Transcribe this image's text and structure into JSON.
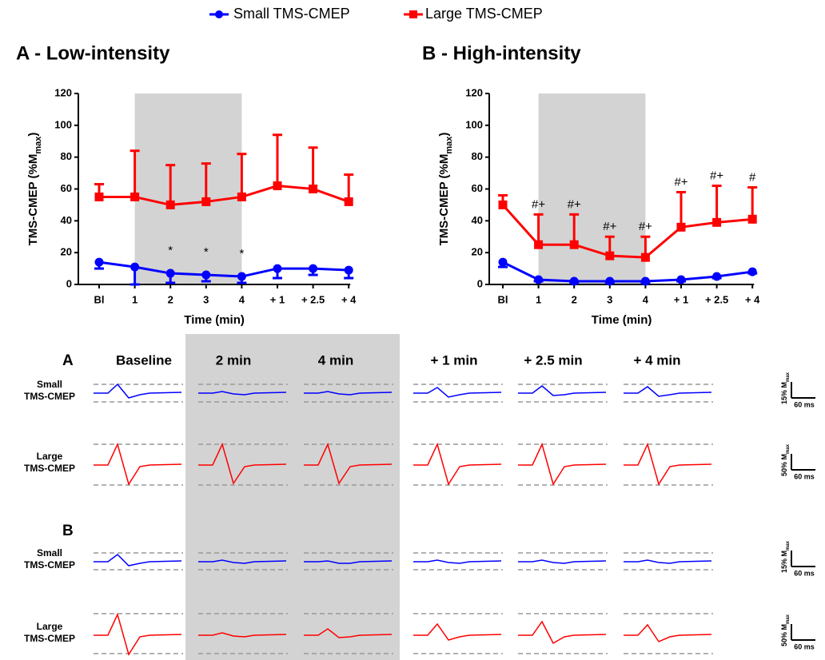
{
  "chart_data": [
    {
      "type": "line",
      "title": "A - Low-intensity",
      "ylabel": [
        "TMS-CMEP (%M",
        "max",
        ")"
      ],
      "xlabel": "Time (min)",
      "categories": [
        "Bl",
        "1",
        "2",
        "3",
        "4",
        "+ 1",
        "+ 2.5",
        "+ 4"
      ],
      "shade": [
        "1",
        "4"
      ],
      "ylim": [
        0,
        120
      ],
      "yticks": [
        0,
        20,
        40,
        60,
        80,
        100,
        120
      ],
      "series": [
        {
          "name": "Small TMS-CMEP",
          "color": "#0000ff",
          "marker": "circle",
          "error_direction": "down",
          "values": [
            14,
            11,
            7,
            6,
            5,
            10,
            10,
            9
          ],
          "errors": [
            4,
            11,
            6,
            4,
            4,
            6,
            4,
            5
          ],
          "annotations": [
            null,
            null,
            "*",
            "*",
            "*",
            null,
            null,
            null
          ]
        },
        {
          "name": "Large TMS-CMEP",
          "color": "#ff0000",
          "marker": "square",
          "error_direction": "up",
          "values": [
            55,
            55,
            50,
            52,
            55,
            62,
            60,
            52
          ],
          "errors": [
            8,
            29,
            25,
            24,
            27,
            32,
            26,
            17
          ],
          "annotations": [
            null,
            null,
            null,
            null,
            null,
            null,
            null,
            null
          ]
        }
      ]
    },
    {
      "type": "line",
      "title": "B - High-intensity",
      "ylabel": [
        "TMS-CMEP (%M",
        "max",
        ")"
      ],
      "xlabel": "Time (min)",
      "categories": [
        "Bl",
        "1",
        "2",
        "3",
        "4",
        "+ 1",
        "+ 2.5",
        "+ 4"
      ],
      "shade": [
        "1",
        "4"
      ],
      "ylim": [
        0,
        120
      ],
      "yticks": [
        0,
        20,
        40,
        60,
        80,
        100,
        120
      ],
      "series": [
        {
          "name": "Small TMS-CMEP",
          "color": "#0000ff",
          "marker": "circle",
          "error_direction": "down",
          "values": [
            14,
            3,
            2,
            2,
            2,
            3,
            5,
            8
          ],
          "errors": [
            3,
            1,
            1,
            1,
            1,
            1,
            1,
            1
          ],
          "annotations": [
            null,
            null,
            null,
            null,
            null,
            null,
            null,
            null
          ]
        },
        {
          "name": "Large TMS-CMEP",
          "color": "#ff0000",
          "marker": "square",
          "error_direction": "up",
          "values": [
            50,
            25,
            25,
            18,
            17,
            36,
            39,
            41
          ],
          "errors": [
            6,
            19,
            19,
            12,
            13,
            22,
            23,
            20
          ],
          "annotations": [
            null,
            "#+",
            "#+",
            "#+",
            "#+",
            "#+",
            "#+",
            "#"
          ]
        }
      ]
    }
  ],
  "traces": {
    "panels": [
      "A",
      "B"
    ],
    "columns": [
      "Baseline",
      "2 min",
      "4 min",
      "+ 1 min",
      "+ 2.5 min",
      "+ 4 min"
    ],
    "rows": [
      [
        "Small",
        "TMS-CMEP"
      ],
      [
        "Large",
        "TMS-CMEP"
      ],
      [
        "Small",
        "TMS-CMEP"
      ],
      [
        "Large",
        "TMS-CMEP"
      ]
    ],
    "scale_bars": [
      {
        "amplitude": "15% M",
        "sub": "max",
        "time": "60 ms"
      },
      {
        "amplitude": "50% M",
        "sub": "max",
        "time": "60 ms"
      },
      {
        "amplitude": "15% M",
        "sub": "max",
        "time": "60 ms"
      },
      {
        "amplitude": "50% M",
        "sub": "max",
        "time": "60 ms"
      }
    ]
  }
}
